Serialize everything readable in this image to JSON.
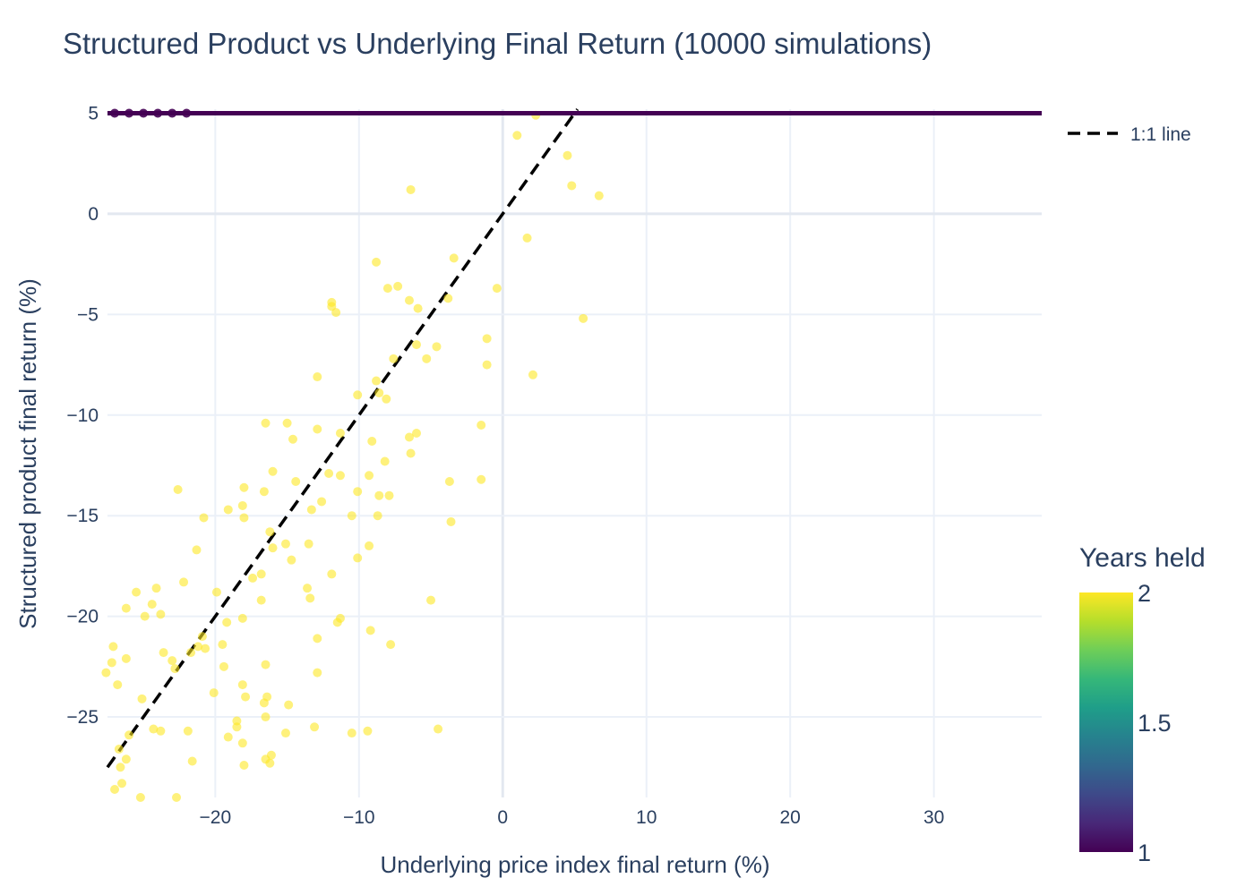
{
  "chart_data": {
    "type": "scatter",
    "title": "Structured Product vs Underlying Final Return (10000 simulations)",
    "xlabel": "Underlying price index final return (%)",
    "ylabel": "Structured product final return (%)",
    "xlim": [
      -27.5,
      37.5
    ],
    "ylim": [
      -29.0,
      5.2
    ],
    "x_ticks": [
      -20,
      -10,
      0,
      10,
      20,
      30
    ],
    "x_tick_labels": [
      "−20",
      "−10",
      "0",
      "10",
      "20",
      "30"
    ],
    "y_ticks": [
      5,
      0,
      -5,
      -10,
      -15,
      -20,
      -25
    ],
    "y_tick_labels": [
      "5",
      "0",
      "−5",
      "−10",
      "−15",
      "−20",
      "−25"
    ],
    "grid": true,
    "legend": {
      "position": "top-right",
      "entries": [
        {
          "label": "1:1 line",
          "style": "dashed",
          "color": "#000000"
        }
      ]
    },
    "colorbar": {
      "title": "Years held",
      "min": 1,
      "max": 2,
      "ticks": [
        2,
        1.5,
        1
      ],
      "tick_labels": [
        "2",
        "1.5",
        "1"
      ],
      "colorscale": [
        "#440154",
        "#482878",
        "#3e4989",
        "#31688e",
        "#26828e",
        "#1f9e89",
        "#35b779",
        "#6ece58",
        "#b5de2b",
        "#fde725"
      ]
    },
    "reference_line": {
      "name": "1:1 line",
      "x": [
        -27.5,
        5.2
      ],
      "y": [
        -27.5,
        5.2
      ]
    },
    "cap_level": 5,
    "series": [
      {
        "years_held": 1,
        "color": "#440154",
        "note_value": 5,
        "x_range": [
          -27.5,
          37.5
        ],
        "points": [
          [
            -27,
            5
          ],
          [
            -26,
            5
          ],
          [
            -25,
            5
          ],
          [
            -24,
            5
          ],
          [
            -23,
            5
          ],
          [
            -22,
            5
          ]
        ]
      },
      {
        "years_held": 2,
        "color": "#fde725",
        "points": [
          [
            2.3,
            4.9
          ],
          [
            1.0,
            3.9
          ],
          [
            4.5,
            2.9
          ],
          [
            4.8,
            1.4
          ],
          [
            6.7,
            0.9
          ],
          [
            -6.4,
            1.2
          ],
          [
            1.7,
            -1.2
          ],
          [
            -3.4,
            -2.2
          ],
          [
            -8.8,
            -2.4
          ],
          [
            -8.0,
            -3.7
          ],
          [
            -7.3,
            -3.6
          ],
          [
            -3.8,
            -4.2
          ],
          [
            -0.4,
            -3.7
          ],
          [
            -6.5,
            -4.3
          ],
          [
            -5.9,
            -4.7
          ],
          [
            -11.9,
            -4.4
          ],
          [
            -11.9,
            -4.6
          ],
          [
            -11.6,
            -4.9
          ],
          [
            5.6,
            -5.2
          ],
          [
            -6.0,
            -6.5
          ],
          [
            -4.6,
            -6.6
          ],
          [
            -7.6,
            -7.2
          ],
          [
            -5.3,
            -7.2
          ],
          [
            -1.1,
            -6.2
          ],
          [
            -1.1,
            -7.5
          ],
          [
            2.1,
            -8.0
          ],
          [
            -12.9,
            -8.1
          ],
          [
            -8.8,
            -8.3
          ],
          [
            -8.6,
            -8.9
          ],
          [
            -8.1,
            -9.2
          ],
          [
            -10.1,
            -9.0
          ],
          [
            -16.5,
            -10.4
          ],
          [
            -15.0,
            -10.4
          ],
          [
            -1.5,
            -10.5
          ],
          [
            -12.9,
            -10.7
          ],
          [
            -11.3,
            -10.9
          ],
          [
            -6.0,
            -10.9
          ],
          [
            -6.5,
            -11.1
          ],
          [
            -14.6,
            -11.2
          ],
          [
            -9.1,
            -11.3
          ],
          [
            -6.4,
            -11.9
          ],
          [
            -8.2,
            -12.3
          ],
          [
            -16.0,
            -12.8
          ],
          [
            -12.1,
            -12.9
          ],
          [
            -11.3,
            -13.0
          ],
          [
            -9.3,
            -13.0
          ],
          [
            -14.4,
            -13.3
          ],
          [
            -3.7,
            -13.3
          ],
          [
            -1.5,
            -13.2
          ],
          [
            -22.6,
            -13.7
          ],
          [
            -18.0,
            -13.6
          ],
          [
            -16.6,
            -13.8
          ],
          [
            -10.1,
            -13.8
          ],
          [
            -8.6,
            -14.0
          ],
          [
            -7.9,
            -14.0
          ],
          [
            -12.6,
            -14.3
          ],
          [
            -13.3,
            -14.7
          ],
          [
            -18.1,
            -14.5
          ],
          [
            -19.1,
            -14.7
          ],
          [
            -10.5,
            -15.0
          ],
          [
            -8.7,
            -15.0
          ],
          [
            -20.8,
            -15.1
          ],
          [
            -18.0,
            -15.1
          ],
          [
            -3.6,
            -15.3
          ],
          [
            -16.2,
            -15.8
          ],
          [
            -15.1,
            -16.4
          ],
          [
            -13.5,
            -16.4
          ],
          [
            -9.3,
            -16.5
          ],
          [
            -21.3,
            -16.7
          ],
          [
            -16.0,
            -16.6
          ],
          [
            -10.1,
            -17.1
          ],
          [
            -14.7,
            -17.2
          ],
          [
            -11.9,
            -17.9
          ],
          [
            -16.8,
            -17.9
          ],
          [
            -17.4,
            -18.1
          ],
          [
            -22.2,
            -18.3
          ],
          [
            -24.1,
            -18.6
          ],
          [
            -13.6,
            -18.6
          ],
          [
            -25.5,
            -18.8
          ],
          [
            -19.9,
            -18.8
          ],
          [
            -13.4,
            -19.1
          ],
          [
            -16.8,
            -19.2
          ],
          [
            -5.0,
            -19.2
          ],
          [
            -24.4,
            -19.4
          ],
          [
            -26.2,
            -19.6
          ],
          [
            -23.8,
            -19.9
          ],
          [
            -24.9,
            -20.0
          ],
          [
            -18.1,
            -20.1
          ],
          [
            -11.3,
            -20.1
          ],
          [
            -11.5,
            -20.3
          ],
          [
            -19.2,
            -20.3
          ],
          [
            -9.2,
            -20.7
          ],
          [
            -20.9,
            -21.0
          ],
          [
            -12.9,
            -21.1
          ],
          [
            -21.2,
            -21.5
          ],
          [
            -20.7,
            -21.6
          ],
          [
            -19.5,
            -21.4
          ],
          [
            -7.8,
            -21.4
          ],
          [
            -27.1,
            -21.5
          ],
          [
            -23.6,
            -21.8
          ],
          [
            -21.7,
            -21.8
          ],
          [
            -27.2,
            -22.3
          ],
          [
            -26.2,
            -22.1
          ],
          [
            -23.0,
            -22.2
          ],
          [
            -22.8,
            -22.6
          ],
          [
            -19.4,
            -22.5
          ],
          [
            -16.5,
            -22.4
          ],
          [
            -12.9,
            -22.8
          ],
          [
            -27.6,
            -22.8
          ],
          [
            -26.8,
            -23.4
          ],
          [
            -18.1,
            -23.4
          ],
          [
            -20.1,
            -23.8
          ],
          [
            -17.9,
            -24.0
          ],
          [
            -16.4,
            -24.0
          ],
          [
            -16.6,
            -24.3
          ],
          [
            -25.1,
            -24.1
          ],
          [
            -14.9,
            -24.4
          ],
          [
            -16.5,
            -25.0
          ],
          [
            -18.5,
            -25.2
          ],
          [
            -18.5,
            -25.5
          ],
          [
            -24.3,
            -25.6
          ],
          [
            -23.8,
            -25.7
          ],
          [
            -21.9,
            -25.7
          ],
          [
            -13.1,
            -25.5
          ],
          [
            -15.1,
            -25.8
          ],
          [
            -9.4,
            -25.7
          ],
          [
            -10.5,
            -25.8
          ],
          [
            -4.5,
            -25.6
          ],
          [
            -26.0,
            -25.9
          ],
          [
            -19.1,
            -26.0
          ],
          [
            -18.1,
            -26.3
          ],
          [
            -26.7,
            -26.6
          ],
          [
            -16.1,
            -26.9
          ],
          [
            -16.5,
            -27.1
          ],
          [
            -26.2,
            -27.1
          ],
          [
            -21.6,
            -27.2
          ],
          [
            -16.2,
            -27.3
          ],
          [
            -18.0,
            -27.4
          ],
          [
            -26.6,
            -27.5
          ],
          [
            -26.5,
            -28.3
          ],
          [
            -27.0,
            -28.6
          ],
          [
            -25.2,
            -29.0
          ],
          [
            -22.7,
            -29.0
          ]
        ]
      }
    ]
  }
}
